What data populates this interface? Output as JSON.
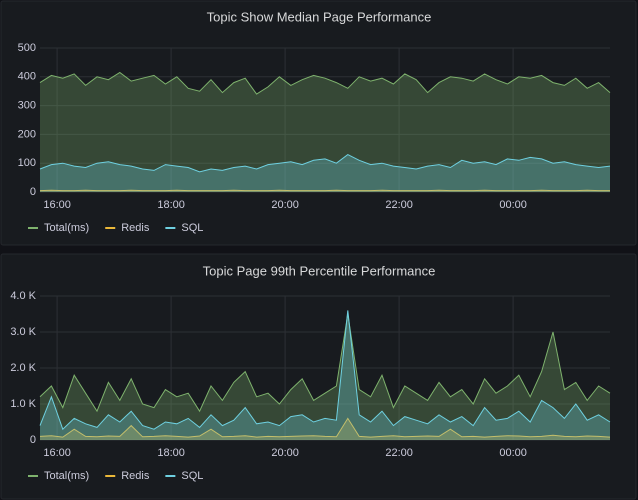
{
  "chart_data": [
    {
      "type": "line",
      "title": "Topic Show Median Page Performance",
      "x": [
        15.7,
        15.9,
        16.1,
        16.3,
        16.5,
        16.7,
        16.9,
        17.1,
        17.3,
        17.5,
        17.7,
        17.9,
        18.1,
        18.3,
        18.5,
        18.7,
        18.9,
        19.1,
        19.3,
        19.5,
        19.7,
        19.9,
        20.1,
        20.3,
        20.5,
        20.7,
        20.9,
        21.1,
        21.3,
        21.5,
        21.7,
        21.9,
        22.1,
        22.3,
        22.5,
        22.7,
        22.9,
        23.1,
        23.3,
        23.5,
        23.7,
        23.9,
        24.1,
        24.3,
        24.5,
        24.7,
        24.9,
        25.1,
        25.3,
        25.5,
        25.7
      ],
      "xlim": [
        15.7,
        25.7
      ],
      "xticks": [
        {
          "value": 16,
          "label": "16:00"
        },
        {
          "value": 18,
          "label": "18:00"
        },
        {
          "value": 20,
          "label": "20:00"
        },
        {
          "value": 22,
          "label": "22:00"
        },
        {
          "value": 24,
          "label": "00:00"
        }
      ],
      "ylim": [
        0,
        500
      ],
      "yticks": [
        0,
        100,
        200,
        300,
        400,
        500
      ],
      "grid": true,
      "series": [
        {
          "name": "Total(ms)",
          "color": "#7eb26d",
          "values": [
            380,
            405,
            395,
            410,
            370,
            400,
            390,
            415,
            385,
            395,
            405,
            375,
            400,
            360,
            350,
            390,
            345,
            380,
            395,
            340,
            365,
            400,
            370,
            390,
            405,
            395,
            380,
            360,
            400,
            385,
            395,
            375,
            410,
            390,
            345,
            380,
            400,
            395,
            385,
            410,
            390,
            375,
            400,
            395,
            405,
            380,
            370,
            395,
            360,
            380,
            345
          ]
        },
        {
          "name": "Redis",
          "color": "#eab839",
          "values": [
            5,
            6,
            5,
            5,
            6,
            5,
            5,
            5,
            6,
            5,
            5,
            5,
            6,
            5,
            5,
            5,
            5,
            6,
            5,
            5,
            5,
            6,
            5,
            5,
            5,
            5,
            6,
            5,
            5,
            5,
            6,
            5,
            5,
            5,
            5,
            6,
            5,
            5,
            5,
            6,
            5,
            5,
            5,
            5,
            6,
            5,
            5,
            5,
            6,
            5,
            5
          ]
        },
        {
          "name": "SQL",
          "color": "#6ed0e0",
          "values": [
            80,
            95,
            100,
            90,
            85,
            100,
            105,
            95,
            90,
            80,
            75,
            95,
            90,
            85,
            70,
            80,
            75,
            85,
            90,
            80,
            95,
            100,
            105,
            95,
            110,
            115,
            100,
            130,
            110,
            95,
            100,
            90,
            85,
            80,
            90,
            95,
            85,
            110,
            100,
            105,
            95,
            115,
            110,
            120,
            115,
            100,
            105,
            95,
            90,
            85,
            90
          ]
        }
      ]
    },
    {
      "type": "line",
      "title": "Topic Page 99th Percentile Performance",
      "x": [
        15.7,
        15.9,
        16.1,
        16.3,
        16.5,
        16.7,
        16.9,
        17.1,
        17.3,
        17.5,
        17.7,
        17.9,
        18.1,
        18.3,
        18.5,
        18.7,
        18.9,
        19.1,
        19.3,
        19.5,
        19.7,
        19.9,
        20.1,
        20.3,
        20.5,
        20.7,
        20.9,
        21.1,
        21.3,
        21.5,
        21.7,
        21.9,
        22.1,
        22.3,
        22.5,
        22.7,
        22.9,
        23.1,
        23.3,
        23.5,
        23.7,
        23.9,
        24.1,
        24.3,
        24.5,
        24.7,
        24.9,
        25.1,
        25.3,
        25.5,
        25.7
      ],
      "xlim": [
        15.7,
        25.7
      ],
      "xticks": [
        {
          "value": 16,
          "label": "16:00"
        },
        {
          "value": 18,
          "label": "18:00"
        },
        {
          "value": 20,
          "label": "20:00"
        },
        {
          "value": 22,
          "label": "22:00"
        },
        {
          "value": 24,
          "label": "00:00"
        }
      ],
      "ylim": [
        0,
        4000
      ],
      "yticks": [
        0,
        {
          "value": 1000,
          "label": "1.0 K"
        },
        {
          "value": 2000,
          "label": "2.0 K"
        },
        {
          "value": 3000,
          "label": "3.0 K"
        },
        {
          "value": 4000,
          "label": "4.0 K"
        }
      ],
      "grid": true,
      "series": [
        {
          "name": "Total(ms)",
          "color": "#7eb26d",
          "values": [
            1200,
            1500,
            900,
            1800,
            1300,
            800,
            1600,
            1100,
            1700,
            1000,
            900,
            1400,
            1200,
            1300,
            800,
            1500,
            1100,
            1600,
            1900,
            1200,
            1300,
            1000,
            1400,
            1700,
            1100,
            1300,
            1500,
            3500,
            1400,
            1200,
            1800,
            900,
            1500,
            1300,
            1100,
            1600,
            1200,
            1400,
            1000,
            1700,
            1300,
            1500,
            1800,
            1200,
            1900,
            3000,
            1400,
            1600,
            1100,
            1500,
            1300
          ]
        },
        {
          "name": "Redis",
          "color": "#eab839",
          "values": [
            100,
            120,
            80,
            300,
            100,
            90,
            110,
            100,
            400,
            90,
            100,
            120,
            100,
            80,
            110,
            300,
            90,
            100,
            120,
            80,
            100,
            90,
            100,
            110,
            120,
            100,
            90,
            600,
            100,
            80,
            100,
            120,
            90,
            100,
            110,
            100,
            300,
            90,
            100,
            80,
            100,
            120,
            110,
            90,
            100,
            130,
            100,
            90,
            110,
            100,
            80
          ]
        },
        {
          "name": "SQL",
          "color": "#6ed0e0",
          "values": [
            400,
            1200,
            300,
            600,
            450,
            350,
            700,
            500,
            800,
            400,
            300,
            500,
            450,
            600,
            350,
            700,
            400,
            550,
            900,
            450,
            500,
            400,
            650,
            700,
            500,
            600,
            550,
            3600,
            700,
            500,
            800,
            400,
            650,
            550,
            450,
            700,
            500,
            650,
            400,
            900,
            550,
            600,
            800,
            500,
            1100,
            900,
            600,
            1000,
            550,
            700,
            500
          ]
        }
      ]
    }
  ]
}
